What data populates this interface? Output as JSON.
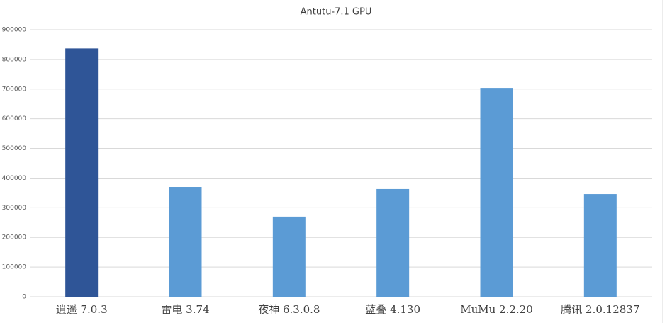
{
  "chart_data": {
    "type": "bar",
    "title": "Antutu-7.1 GPU",
    "categories": [
      "逍遥 7.0.3",
      "雷电 3.74",
      "夜神 6.3.0.8",
      "蓝叠 4.130",
      "MuMu 2.2.20",
      "腾讯 2.0.12837"
    ],
    "values": [
      837000,
      370000,
      270000,
      363000,
      704000,
      346000
    ],
    "colors": [
      "#2f5597",
      "#5b9bd5",
      "#5b9bd5",
      "#5b9bd5",
      "#5b9bd5",
      "#5b9bd5"
    ],
    "ylim": [
      0,
      900000
    ],
    "yticks": [
      0,
      100000,
      200000,
      300000,
      400000,
      500000,
      600000,
      700000,
      800000,
      900000
    ],
    "grid": true
  }
}
